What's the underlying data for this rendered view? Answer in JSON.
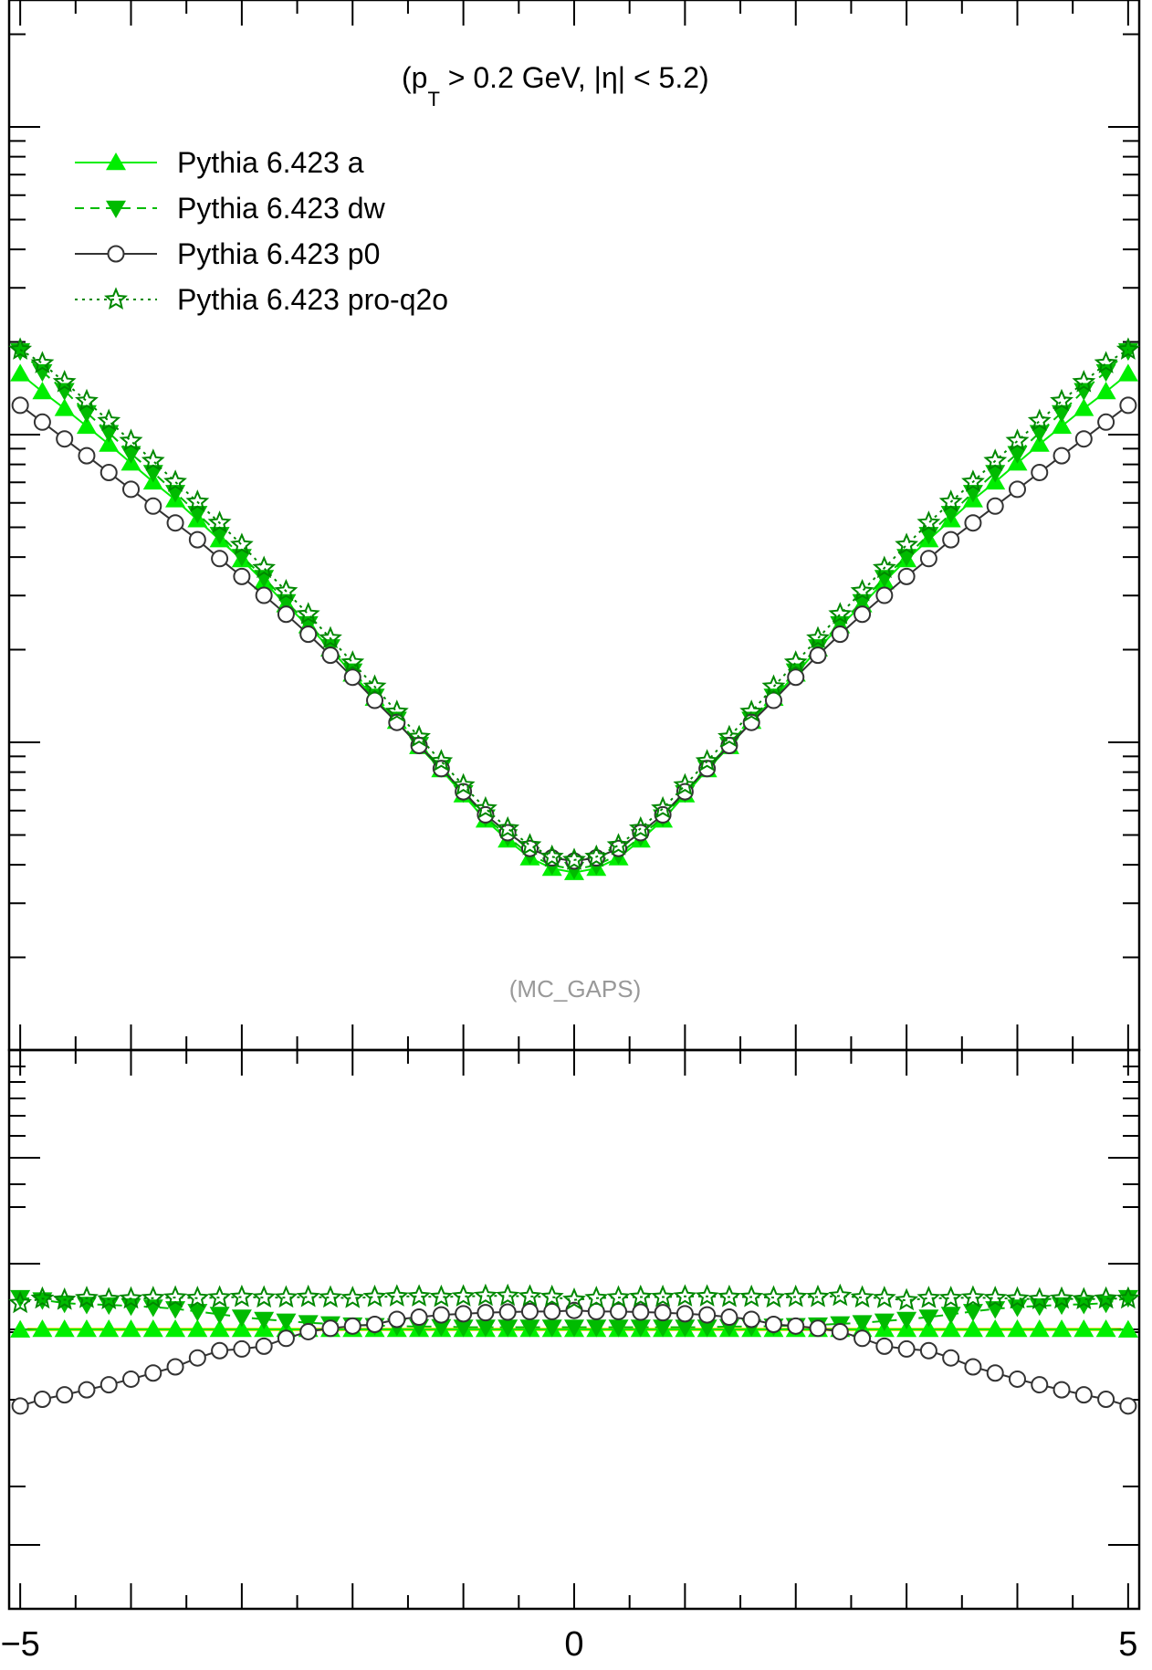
{
  "annotation": {
    "pre": "(p",
    "sub": "T",
    "post": " > 0.2 GeV, |η| < 5.2)"
  },
  "analysis_tag": "(MC_GAPS)",
  "colors": {
    "a": "#00ee00",
    "dw": "#00bb00",
    "p0": "#333333",
    "pro_q2o": "#008800",
    "reference_band": "#dddd00"
  },
  "chart_data": [
    {
      "type": "line",
      "panel": "main",
      "title": "",
      "xlabel": "",
      "ylabel": "",
      "xlim": [
        -5.1,
        5.1
      ],
      "ylim": [
        0,
        1
      ],
      "y_unlabeled": true,
      "legend_position": "top-left",
      "x": [
        -5.0,
        -4.8,
        -4.6,
        -4.4,
        -4.2,
        -4.0,
        -3.8,
        -3.6,
        -3.4,
        -3.2,
        -3.0,
        -2.8,
        -2.6,
        -2.4,
        -2.2,
        -2.0,
        -1.8,
        -1.6,
        -1.4,
        -1.2,
        -1.0,
        -0.8,
        -0.6,
        -0.4,
        -0.2,
        0.0,
        0.2,
        0.4,
        0.6,
        0.8,
        1.0,
        1.2,
        1.4,
        1.6,
        1.8,
        2.0,
        2.2,
        2.4,
        2.6,
        2.8,
        3.0,
        3.2,
        3.4,
        3.6,
        3.8,
        4.0,
        4.2,
        4.4,
        4.6,
        4.8,
        5.0
      ],
      "series": [
        {
          "name": "Pythia 6.423 a",
          "key": "a",
          "marker": "triangle-up",
          "dash": "solid",
          "values": [
            0.644,
            0.627,
            0.611,
            0.594,
            0.577,
            0.559,
            0.541,
            0.524,
            0.505,
            0.486,
            0.467,
            0.446,
            0.424,
            0.404,
            0.382,
            0.358,
            0.335,
            0.313,
            0.289,
            0.267,
            0.243,
            0.219,
            0.2,
            0.183,
            0.173,
            0.169,
            0.173,
            0.183,
            0.2,
            0.219,
            0.243,
            0.267,
            0.289,
            0.313,
            0.335,
            0.358,
            0.382,
            0.404,
            0.424,
            0.446,
            0.467,
            0.486,
            0.505,
            0.524,
            0.541,
            0.559,
            0.577,
            0.594,
            0.611,
            0.627,
            0.644
          ]
        },
        {
          "name": "Pythia 6.423 dw",
          "key": "dw",
          "marker": "triangle-down",
          "dash": "dashed",
          "values": [
            0.666,
            0.646,
            0.628,
            0.607,
            0.588,
            0.568,
            0.55,
            0.531,
            0.511,
            0.491,
            0.47,
            0.45,
            0.427,
            0.406,
            0.384,
            0.361,
            0.337,
            0.315,
            0.291,
            0.269,
            0.245,
            0.222,
            0.203,
            0.186,
            0.176,
            0.172,
            0.176,
            0.186,
            0.203,
            0.222,
            0.245,
            0.269,
            0.291,
            0.315,
            0.337,
            0.361,
            0.384,
            0.406,
            0.427,
            0.45,
            0.47,
            0.491,
            0.511,
            0.531,
            0.55,
            0.568,
            0.588,
            0.607,
            0.628,
            0.646,
            0.666
          ]
        },
        {
          "name": "Pythia 6.423 p0",
          "key": "p0",
          "marker": "circle-open",
          "dash": "solid",
          "values": [
            0.614,
            0.598,
            0.582,
            0.566,
            0.55,
            0.534,
            0.518,
            0.502,
            0.486,
            0.468,
            0.451,
            0.433,
            0.415,
            0.396,
            0.376,
            0.355,
            0.333,
            0.312,
            0.29,
            0.268,
            0.246,
            0.224,
            0.207,
            0.192,
            0.183,
            0.18,
            0.183,
            0.192,
            0.207,
            0.224,
            0.246,
            0.268,
            0.29,
            0.312,
            0.333,
            0.355,
            0.376,
            0.396,
            0.415,
            0.433,
            0.451,
            0.468,
            0.486,
            0.502,
            0.518,
            0.534,
            0.55,
            0.566,
            0.582,
            0.598,
            0.614
          ]
        },
        {
          "name": "Pythia 6.423 pro-q2o",
          "key": "pro_q2o",
          "marker": "star-open",
          "dash": "dotted",
          "values": [
            0.667,
            0.654,
            0.636,
            0.618,
            0.599,
            0.58,
            0.561,
            0.541,
            0.522,
            0.502,
            0.481,
            0.459,
            0.437,
            0.415,
            0.392,
            0.369,
            0.346,
            0.322,
            0.298,
            0.275,
            0.252,
            0.23,
            0.211,
            0.195,
            0.184,
            0.181,
            0.184,
            0.195,
            0.211,
            0.23,
            0.252,
            0.275,
            0.298,
            0.322,
            0.346,
            0.369,
            0.392,
            0.415,
            0.437,
            0.459,
            0.481,
            0.502,
            0.522,
            0.541,
            0.561,
            0.58,
            0.599,
            0.618,
            0.636,
            0.654,
            0.667
          ]
        }
      ]
    },
    {
      "type": "line",
      "panel": "ratio",
      "title": "",
      "xlabel": "",
      "ylabel": "",
      "xlim": [
        -5.1,
        5.1
      ],
      "ylim": [
        0,
        1
      ],
      "y_unlabeled": true,
      "x_ticks": [
        -5,
        0,
        5
      ],
      "x_tick_labels": [
        "−5",
        "0",
        "5"
      ],
      "reference_line": 0.5,
      "x": [
        -5.0,
        -4.8,
        -4.6,
        -4.4,
        -4.2,
        -4.0,
        -3.8,
        -3.6,
        -3.4,
        -3.2,
        -3.0,
        -2.8,
        -2.6,
        -2.4,
        -2.2,
        -2.0,
        -1.8,
        -1.6,
        -1.4,
        -1.2,
        -1.0,
        -0.8,
        -0.6,
        -0.4,
        -0.2,
        0.0,
        0.2,
        0.4,
        0.6,
        0.8,
        1.0,
        1.2,
        1.4,
        1.6,
        1.8,
        2.0,
        2.2,
        2.4,
        2.6,
        2.8,
        3.0,
        3.2,
        3.4,
        3.6,
        3.8,
        4.0,
        4.2,
        4.4,
        4.6,
        4.8,
        5.0
      ],
      "series": [
        {
          "key": "a",
          "marker": "triangle-up",
          "dash": "solid",
          "values": [
            0.499,
            0.5,
            0.5,
            0.5,
            0.5,
            0.5,
            0.5,
            0.5,
            0.5,
            0.5,
            0.5,
            0.5,
            0.5,
            0.5,
            0.5,
            0.5,
            0.5,
            0.5,
            0.5,
            0.5,
            0.5,
            0.5,
            0.5,
            0.5,
            0.5,
            0.5,
            0.5,
            0.5,
            0.5,
            0.5,
            0.5,
            0.5,
            0.5,
            0.5,
            0.5,
            0.5,
            0.5,
            0.5,
            0.5,
            0.5,
            0.5,
            0.5,
            0.5,
            0.5,
            0.5,
            0.5,
            0.5,
            0.5,
            0.5,
            0.5,
            0.499
          ]
        },
        {
          "key": "dw",
          "marker": "triangle-down",
          "dash": "dashed",
          "values": [
            0.557,
            0.553,
            0.547,
            0.545,
            0.544,
            0.542,
            0.54,
            0.537,
            0.532,
            0.527,
            0.522,
            0.518,
            0.515,
            0.512,
            0.51,
            0.508,
            0.507,
            0.506,
            0.505,
            0.505,
            0.504,
            0.504,
            0.504,
            0.504,
            0.504,
            0.504,
            0.504,
            0.504,
            0.504,
            0.504,
            0.504,
            0.504,
            0.505,
            0.505,
            0.506,
            0.507,
            0.508,
            0.51,
            0.512,
            0.515,
            0.518,
            0.522,
            0.527,
            0.532,
            0.537,
            0.54,
            0.542,
            0.544,
            0.545,
            0.547,
            0.557
          ]
        },
        {
          "key": "p0",
          "marker": "circle-open",
          "dash": "solid",
          "values": [
            0.363,
            0.375,
            0.383,
            0.392,
            0.401,
            0.411,
            0.422,
            0.433,
            0.449,
            0.462,
            0.465,
            0.47,
            0.484,
            0.496,
            0.502,
            0.506,
            0.509,
            0.518,
            0.522,
            0.526,
            0.528,
            0.53,
            0.531,
            0.532,
            0.532,
            0.534,
            0.532,
            0.532,
            0.531,
            0.53,
            0.528,
            0.526,
            0.522,
            0.518,
            0.509,
            0.506,
            0.502,
            0.496,
            0.484,
            0.47,
            0.465,
            0.462,
            0.449,
            0.433,
            0.422,
            0.411,
            0.401,
            0.392,
            0.383,
            0.375,
            0.363
          ]
        },
        {
          "key": "pro_q2o",
          "marker": "star-open",
          "dash": "dotted",
          "values": [
            0.547,
            0.555,
            0.553,
            0.556,
            0.554,
            0.555,
            0.556,
            0.557,
            0.556,
            0.557,
            0.558,
            0.557,
            0.557,
            0.558,
            0.557,
            0.556,
            0.558,
            0.559,
            0.559,
            0.558,
            0.559,
            0.56,
            0.56,
            0.559,
            0.558,
            0.553,
            0.556,
            0.557,
            0.558,
            0.558,
            0.559,
            0.559,
            0.558,
            0.558,
            0.557,
            0.558,
            0.558,
            0.56,
            0.557,
            0.556,
            0.552,
            0.556,
            0.556,
            0.557,
            0.556,
            0.555,
            0.554,
            0.555,
            0.554,
            0.555,
            0.555
          ]
        }
      ]
    }
  ]
}
